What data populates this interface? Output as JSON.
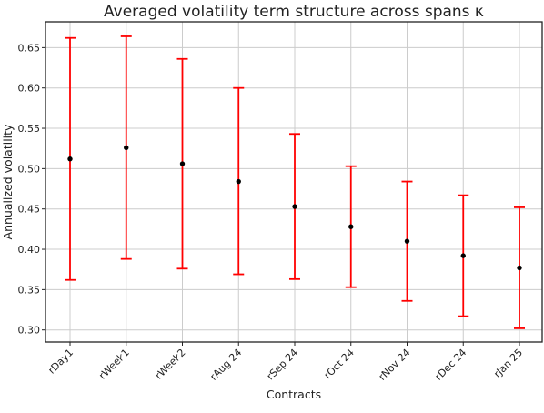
{
  "chart_data": {
    "type": "scatter",
    "title": "Averaged volatility term structure across spans κ",
    "xlabel": "Contracts",
    "ylabel": "Annualized volatility",
    "categories": [
      "rDay1",
      "rWeek1",
      "rWeek2",
      "rAug 24",
      "rSep 24",
      "rOct 24",
      "rNov 24",
      "rDec 24",
      "rJan 25"
    ],
    "series": [
      {
        "values": [
          0.512,
          0.526,
          0.506,
          0.484,
          0.453,
          0.428,
          0.41,
          0.392,
          0.377
        ],
        "lower": [
          0.362,
          0.388,
          0.376,
          0.369,
          0.363,
          0.353,
          0.336,
          0.317,
          0.302
        ],
        "upper": [
          0.662,
          0.664,
          0.636,
          0.6,
          0.543,
          0.503,
          0.484,
          0.467,
          0.452
        ],
        "marker_color": "#000000",
        "errorbar_color": "#ff0000"
      }
    ],
    "ylim": [
      0.285,
      0.682
    ],
    "yticks": [
      0.3,
      0.35,
      0.4,
      0.45,
      0.5,
      0.55,
      0.6,
      0.65
    ],
    "ytick_labels": [
      "0.30",
      "0.35",
      "0.40",
      "0.45",
      "0.50",
      "0.55",
      "0.60",
      "0.65"
    ],
    "grid": true
  }
}
